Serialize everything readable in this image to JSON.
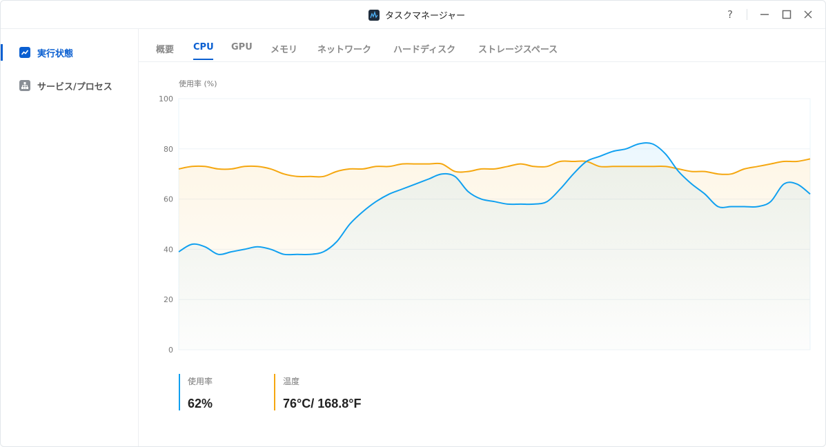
{
  "window": {
    "title": "タスクマネージャー"
  },
  "controls": {
    "help": "?",
    "minimize": "—",
    "maximize": "☐",
    "close": "✕"
  },
  "sidebar": {
    "items": [
      {
        "label": "実行状態",
        "icon": "activity-chart-icon",
        "active": true
      },
      {
        "label": "サービス/プロセス",
        "icon": "hierarchy-icon",
        "active": false
      }
    ]
  },
  "tabs": [
    {
      "label": "概要"
    },
    {
      "label": "CPU",
      "active": true
    },
    {
      "label": "GPU"
    },
    {
      "label": "メモリ"
    },
    {
      "label": "ネットワーク"
    },
    {
      "label": "ハードディスク"
    },
    {
      "label": "ストレージスペース"
    }
  ],
  "colors": {
    "accent": "#0a5fd1",
    "usage": "#10a0f0",
    "temperature": "#f5a710"
  },
  "chart_data": {
    "type": "area",
    "title": "",
    "ylabel": "使用率 (%)",
    "xlabel": "",
    "ylim": [
      0,
      100
    ],
    "yticks": [
      0,
      20,
      40,
      60,
      80,
      100
    ],
    "grid": true,
    "series": [
      {
        "name": "使用率",
        "color": "#10a0f0",
        "values": [
          39,
          42,
          41,
          38,
          39,
          40,
          41,
          40,
          38,
          38,
          38,
          39,
          43,
          50,
          55,
          59,
          62,
          64,
          66,
          68,
          70,
          69,
          63,
          60,
          59,
          58,
          58,
          58,
          59,
          64,
          70,
          75,
          77,
          79,
          80,
          82,
          82,
          78,
          71,
          66,
          62,
          57,
          57,
          57,
          57,
          59,
          66,
          66,
          62
        ]
      },
      {
        "name": "温度",
        "color": "#f5a710",
        "values": [
          72,
          73,
          73,
          72,
          72,
          73,
          73,
          72,
          70,
          69,
          69,
          69,
          71,
          72,
          72,
          73,
          73,
          74,
          74,
          74,
          74,
          71,
          71,
          72,
          72,
          73,
          74,
          73,
          73,
          75,
          75,
          75,
          73,
          73,
          73,
          73,
          73,
          73,
          72,
          71,
          71,
          70,
          70,
          72,
          73,
          74,
          75,
          75,
          76
        ]
      }
    ]
  },
  "stats": {
    "usage": {
      "label": "使用率",
      "value": "62%"
    },
    "temperature": {
      "label": "温度",
      "value": "76°C/ 168.8°F"
    }
  }
}
